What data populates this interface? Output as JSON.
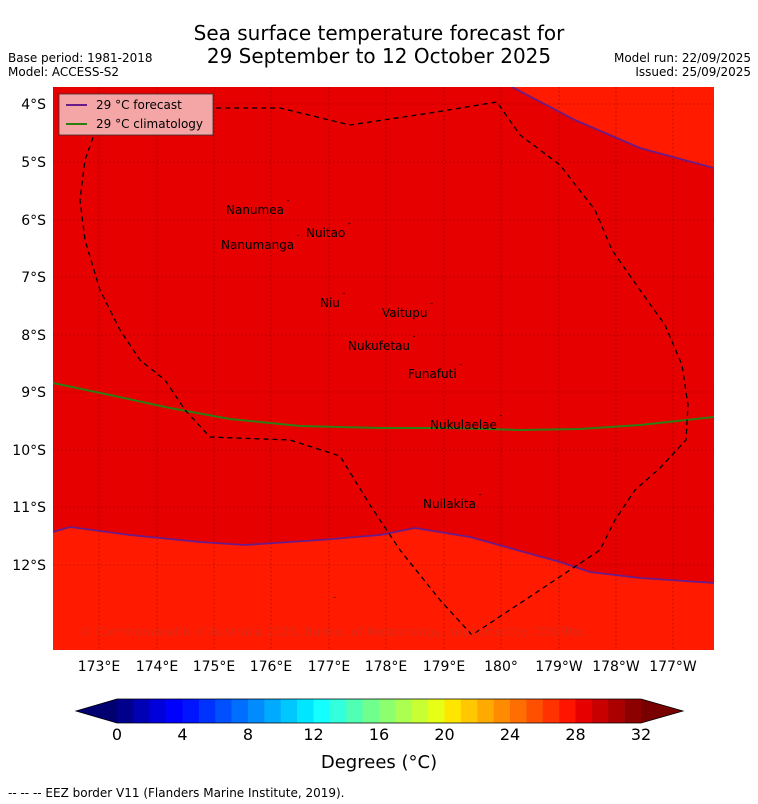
{
  "header": {
    "title_line1": "Sea surface temperature forecast for",
    "title_line2": "29 September to 12 October 2025",
    "base_period": "Base period: 1981-2018",
    "model": "Model: ACCESS-S2",
    "model_run": "Model run: 22/09/2025",
    "issued": "Issued: 25/09/2025"
  },
  "map": {
    "lat_labels": [
      "4°S",
      "5°S",
      "6°S",
      "7°S",
      "8°S",
      "9°S",
      "10°S",
      "11°S",
      "12°S"
    ],
    "lon_labels": [
      "173°E",
      "174°E",
      "175°E",
      "176°E",
      "177°E",
      "178°E",
      "179°E",
      "180°",
      "179°W",
      "178°W",
      "177°W"
    ],
    "places": [
      {
        "name": "Nanumea"
      },
      {
        "name": "Nuitao"
      },
      {
        "name": "Nanumanga"
      },
      {
        "name": "Niu"
      },
      {
        "name": "Vaitupu"
      },
      {
        "name": "Nukufetau"
      },
      {
        "name": "Funafuti"
      },
      {
        "name": "Nukulaelae"
      },
      {
        "name": "Nuilakita"
      }
    ],
    "legend": {
      "forecast_label": "29 °C  forecast",
      "climatology_label": "29 °C  climatology",
      "forecast_color": "#6a1b8a",
      "climatology_color": "#2e7d12"
    },
    "copyright": "© Commonwealth of Australia 2025, Bureau of Meteorology, supported by COSPPac",
    "colors": {
      "warm_region": "#e60000",
      "cooler_region": "#ff1a00"
    }
  },
  "colorbar": {
    "ticks": [
      "0",
      "4",
      "8",
      "12",
      "16",
      "20",
      "24",
      "28",
      "32"
    ],
    "label": "Degrees (°C)",
    "min": 0,
    "max": 32,
    "step": 1,
    "colors": [
      "#00008c",
      "#0000b4",
      "#0000dc",
      "#0000ff",
      "#0014ff",
      "#0032ff",
      "#0050ff",
      "#006eff",
      "#008cff",
      "#00aaff",
      "#00c8ff",
      "#00e6ff",
      "#14ffff",
      "#32ffdc",
      "#50ffb4",
      "#6eff8c",
      "#8cff6e",
      "#aaff50",
      "#c8ff32",
      "#e6ff14",
      "#ffe600",
      "#ffc800",
      "#ffaa00",
      "#ff8c00",
      "#ff6e00",
      "#ff5000",
      "#ff3200",
      "#ff1400",
      "#e60000",
      "#c80000",
      "#aa0000",
      "#8c0000"
    ],
    "under_color": "#000070",
    "over_color": "#780000"
  },
  "footnote": "--  --  -- EEZ border V11 (Flanders Marine Institute, 2019)."
}
